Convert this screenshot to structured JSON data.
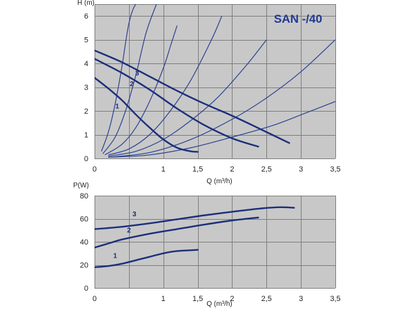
{
  "colors": {
    "plot_bg": "#c8c8c8",
    "grid": "#7e7e7e",
    "curve": "#1b2f7a",
    "system_curve": "#2b4190",
    "title": "#1f3a93"
  },
  "chart_data": [
    {
      "type": "line",
      "title": "SAN -/40",
      "ylabel": "H (m)",
      "xlabel": "Q (m³/h)",
      "xlim": [
        0,
        3.5
      ],
      "ylim": [
        0,
        6.5
      ],
      "xticks": [
        0,
        0.5,
        1,
        1.5,
        2,
        2.5,
        3,
        3.5
      ],
      "xtick_labels": [
        "0",
        "",
        "1",
        "1,5",
        "2",
        "2,5",
        "3",
        "3,5"
      ],
      "yticks": [
        0,
        1,
        2,
        3,
        4,
        5,
        6
      ],
      "ytick_labels": [
        "0",
        "1",
        "2",
        "3",
        "4",
        "5",
        "6"
      ],
      "grid": true,
      "series": [
        {
          "name": "1",
          "label_at": [
            0.33,
            2.1
          ],
          "x": [
            0,
            0.2,
            0.4,
            0.6,
            0.8,
            1.0,
            1.2,
            1.4,
            1.5
          ],
          "y": [
            3.4,
            2.95,
            2.45,
            1.85,
            1.3,
            0.8,
            0.45,
            0.3,
            0.28
          ]
        },
        {
          "name": "2",
          "label_at": [
            0.54,
            3.05
          ],
          "x": [
            0,
            0.4,
            0.8,
            1.2,
            1.6,
            2.0,
            2.38
          ],
          "y": [
            4.2,
            3.6,
            2.9,
            2.1,
            1.4,
            0.85,
            0.5
          ]
        },
        {
          "name": "3",
          "label_at": [
            0.62,
            3.5
          ],
          "x": [
            0,
            0.4,
            0.8,
            1.2,
            1.6,
            2.0,
            2.4,
            2.83
          ],
          "y": [
            4.55,
            4.05,
            3.45,
            2.85,
            2.3,
            1.8,
            1.25,
            0.65
          ]
        }
      ],
      "system_curves": [
        {
          "x": [
            0.1,
            0.2,
            0.3,
            0.4,
            0.5,
            0.6,
            0.7
          ],
          "y": [
            0.3,
            1.1,
            2.3,
            3.9,
            5.7,
            6.5,
            6.5
          ]
        },
        {
          "x": [
            0.12,
            0.3,
            0.45,
            0.6,
            0.75,
            0.9
          ],
          "y": [
            0.2,
            0.9,
            2.0,
            3.5,
            5.3,
            6.5
          ]
        },
        {
          "x": [
            0.15,
            0.4,
            0.6,
            0.8,
            1.0,
            1.1,
            1.2
          ],
          "y": [
            0.15,
            0.6,
            1.3,
            2.4,
            3.8,
            4.7,
            5.6
          ]
        },
        {
          "x": [
            0.2,
            0.5,
            0.8,
            1.1,
            1.4,
            1.7,
            1.85
          ],
          "y": [
            0.15,
            0.4,
            1.0,
            2.0,
            3.3,
            5.0,
            6.0
          ]
        },
        {
          "x": [
            0.2,
            0.6,
            1.0,
            1.4,
            1.8,
            2.2,
            2.5
          ],
          "y": [
            0.1,
            0.3,
            0.8,
            1.6,
            2.6,
            3.9,
            5.0
          ]
        },
        {
          "x": [
            0.2,
            0.8,
            1.4,
            2.0,
            2.5,
            3.0,
            3.5
          ],
          "y": [
            0.05,
            0.25,
            0.8,
            1.65,
            2.55,
            3.65,
            5.0
          ]
        },
        {
          "x": [
            0.2,
            0.8,
            1.4,
            2.0,
            2.6,
            3.1,
            3.5
          ],
          "y": [
            0.05,
            0.15,
            0.45,
            0.9,
            1.4,
            1.95,
            2.4
          ]
        }
      ]
    },
    {
      "type": "line",
      "title": "",
      "ylabel": "P(W)",
      "xlabel": "Q (m³/h)",
      "xlim": [
        0,
        3.5
      ],
      "ylim": [
        0,
        80
      ],
      "xticks": [
        0,
        0.5,
        1,
        1.5,
        2,
        2.5,
        3,
        3.5
      ],
      "xtick_labels": [
        "0",
        "",
        "1",
        "1,5",
        "2",
        "2,5",
        "3",
        "3,5"
      ],
      "yticks": [
        0,
        20,
        40,
        60,
        80
      ],
      "ytick_labels": [
        "0",
        "20",
        "40",
        "60",
        "80"
      ],
      "grid": true,
      "series": [
        {
          "name": "1",
          "label_at": [
            0.3,
            26
          ],
          "x": [
            0,
            0.2,
            0.4,
            0.6,
            0.8,
            1.0,
            1.2,
            1.5
          ],
          "y": [
            18,
            19,
            21,
            24,
            27,
            30,
            32,
            33
          ]
        },
        {
          "name": "2",
          "label_at": [
            0.5,
            48
          ],
          "x": [
            0,
            0.2,
            0.4,
            0.8,
            1.2,
            1.6,
            2.0,
            2.38
          ],
          "y": [
            35,
            38.5,
            42,
            47,
            51,
            55,
            58.5,
            61
          ]
        },
        {
          "name": "3",
          "label_at": [
            0.58,
            62
          ],
          "x": [
            0,
            0.4,
            0.8,
            1.2,
            1.6,
            2.0,
            2.4,
            2.7,
            2.9
          ],
          "y": [
            51,
            53,
            56,
            59.5,
            63,
            66,
            68.8,
            70,
            69.5
          ]
        }
      ]
    }
  ]
}
